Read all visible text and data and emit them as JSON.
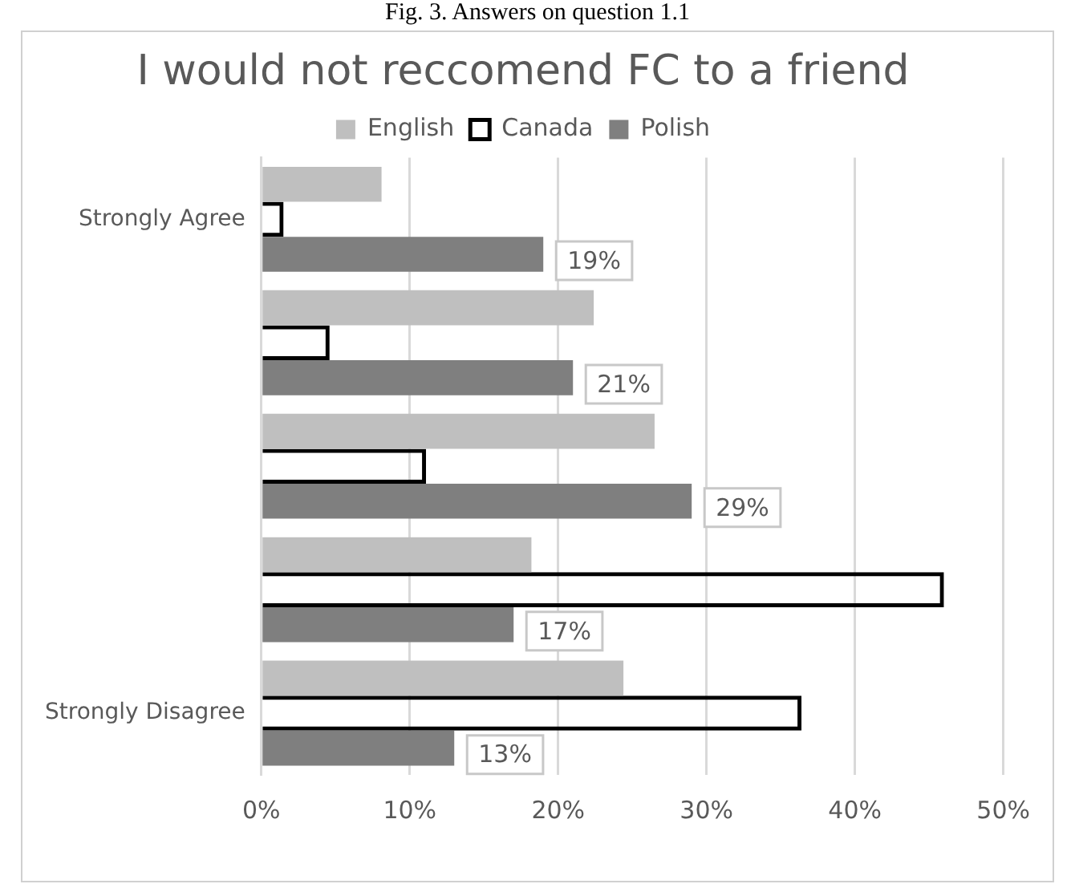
{
  "chart_data": {
    "type": "bar",
    "orientation": "horizontal",
    "title": "I would not reccomend FC to a friend",
    "annotations": [
      "Fig. 3. Answers on question 1.1"
    ],
    "categories": [
      "Strongly Agree",
      null,
      null,
      null,
      "Strongly Disagree"
    ],
    "series": [
      {
        "name": "English",
        "color": "#bfbfbf",
        "values": [
          8.1,
          22.4,
          26.5,
          18.2,
          24.4
        ]
      },
      {
        "name": "Canada",
        "color": "#000000",
        "values": [
          1.5,
          4.6,
          11.1,
          46,
          36.4
        ]
      },
      {
        "name": "Polish",
        "color": "#7f7f7f",
        "values": [
          19,
          21,
          29,
          17,
          13
        ],
        "value_labels": [
          "19%",
          "21%",
          "29%",
          "17%",
          "13%"
        ]
      }
    ],
    "xlim": [
      0,
      50
    ],
    "xticks": [
      {
        "value": 0,
        "label": "0%"
      },
      {
        "value": 10,
        "label": "10%"
      },
      {
        "value": 20,
        "label": "20%"
      },
      {
        "value": 30,
        "label": "30%"
      },
      {
        "value": 40,
        "label": "40%"
      },
      {
        "value": 50,
        "label": "50%"
      }
    ],
    "grid": "x",
    "legend": "top"
  }
}
